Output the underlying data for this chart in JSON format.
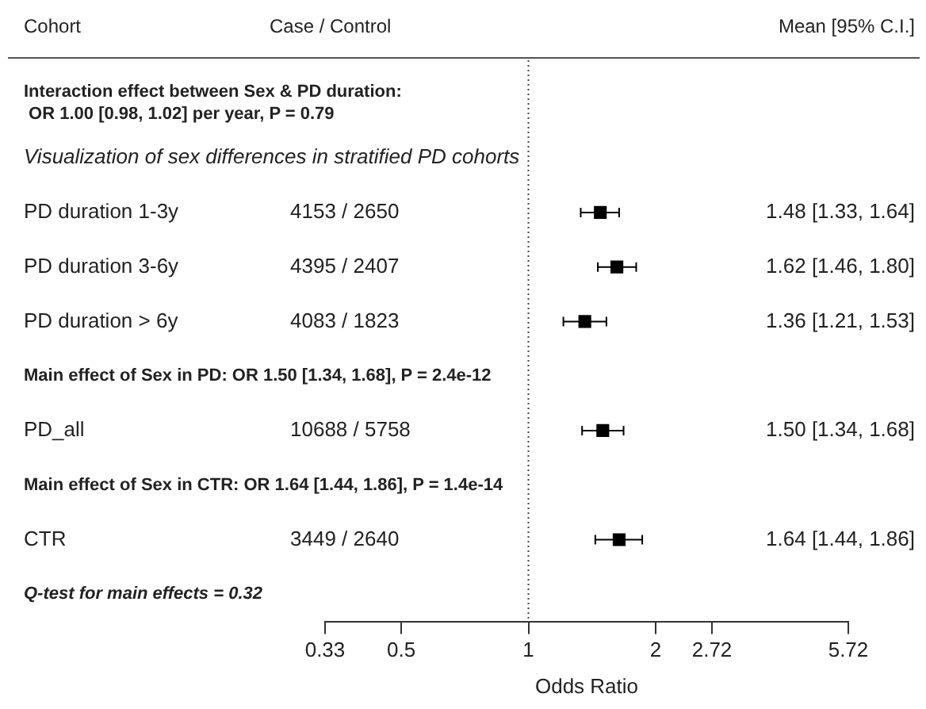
{
  "chart_data": {
    "type": "scatter",
    "orientation": "horizontal",
    "log": "x",
    "xlabel": "Odds Ratio",
    "categories": [
      null,
      null,
      "PD duration 1-3y",
      "PD duration 3-6y",
      "PD duration > 6y",
      null,
      "PD_all",
      null,
      "CTR",
      null
    ],
    "values": [
      null,
      null,
      1.48,
      1.62,
      1.36,
      null,
      1.5,
      null,
      1.64,
      null
    ],
    "errors": [
      null,
      null,
      [
        1.33,
        1.64
      ],
      [
        1.46,
        1.8
      ],
      [
        1.21,
        1.53
      ],
      null,
      [
        1.34,
        1.68
      ],
      null,
      [
        1.44,
        1.86
      ],
      null
    ],
    "color": "#000000",
    "marker": "square",
    "xlim": [
      0.33,
      5.72
    ],
    "xticks": [
      0.33,
      0.5,
      1,
      2,
      2.72,
      5.72
    ],
    "ref_lines": [
      {
        "axis": "x",
        "value": 1,
        "line_style": "dotted"
      }
    ],
    "annotations": [
      "Cohort",
      "Case / Control",
      "Mean [95% C.I.]",
      "Interaction effect between Sex & PD duration:\n OR 1.00 [0.98, 1.02] per year, P = 0.79",
      "Visualization of sex differences in stratified PD cohorts",
      "Main effect of Sex in PD: OR 1.50 [1.34, 1.68], P = 2.4e-12",
      "Main effect of Sex in CTR: OR 1.64 [1.44, 1.86], P = 1.4e-14",
      "Q-test for main effects = 0.32",
      "4153 / 2650",
      "4395 / 2407",
      "4083 / 1823",
      "10688 / 5758",
      "3449 / 2640",
      "1.48 [1.33, 1.64]",
      "1.62 [1.46, 1.80]",
      "1.36 [1.21, 1.53]",
      "1.50 [1.34, 1.68]",
      "1.64 [1.44, 1.86]"
    ]
  }
}
